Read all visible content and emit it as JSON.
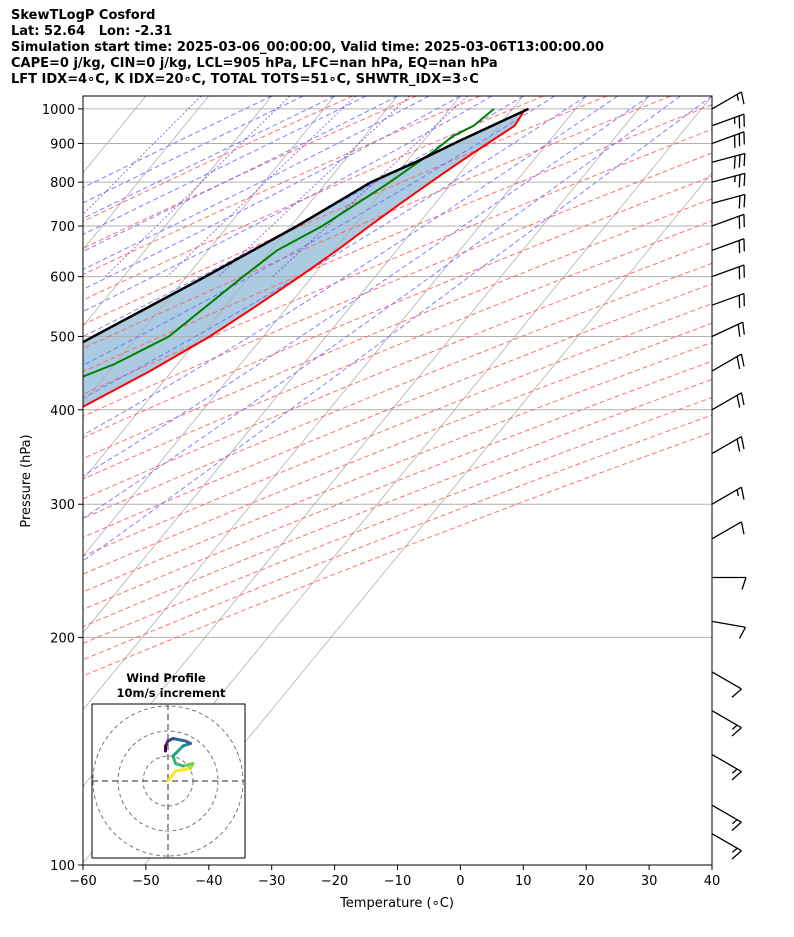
{
  "header": {
    "line1": "SkewTLogP Cosford",
    "line2": "Lat: 52.64   Lon: -2.31",
    "line3": "Simulation start time: 2025-03-06_00:00:00, Valid time: 2025-03-06T13:00:00.00",
    "line4": "CAPE=0 j/kg, CIN=0 j/kg, LCL=905 hPa, LFC=nan hPa, EQ=nan hPa",
    "line5": "LFT IDX=4∘C, K IDX=20∘C, TOTAL TOTS=51∘C, SHWTR_IDX=3∘C"
  },
  "colors": {
    "temperature": "#ff0000",
    "dewpoint": "#008000",
    "parcel": "#000000",
    "cape_fill": "#a6c8e0",
    "dry_adiabat": "#ff6060",
    "moist_adiabat": "#6a6aff",
    "mixing_ratio": "#7a00c8",
    "isotherm": "#b0b0b0",
    "isobar": "#b0b0b0"
  },
  "chart_data": {
    "type": "skewt",
    "xlabel": "Temperature (∘C)",
    "ylabel": "Pressure (hPa)",
    "xlim": [
      -60,
      40
    ],
    "ylim": [
      1040,
      100
    ],
    "y_scale": "log",
    "x_ticks": [
      -60,
      -50,
      -40,
      -30,
      -20,
      -10,
      0,
      10,
      20,
      30,
      40
    ],
    "x_tick_labels": [
      "−60",
      "−50",
      "−40",
      "−30",
      "−20",
      "−10",
      "0",
      "10",
      "20",
      "30",
      "40"
    ],
    "y_ticks": [
      1000,
      900,
      800,
      700,
      600,
      500,
      400,
      300,
      200,
      100
    ],
    "y_tick_labels": [
      "1000",
      "900",
      "800",
      "700",
      "600",
      "500",
      "400",
      "300",
      "200",
      "100"
    ],
    "grid": true,
    "temperature_profile": [
      {
        "p": 1000,
        "t": 12
      },
      {
        "p": 950,
        "t": 12.5
      },
      {
        "p": 900,
        "t": 10.5
      },
      {
        "p": 850,
        "t": 8.5
      },
      {
        "p": 800,
        "t": 6.5
      },
      {
        "p": 750,
        "t": 4.5
      },
      {
        "p": 700,
        "t": 2.5
      },
      {
        "p": 650,
        "t": 0.5
      },
      {
        "p": 600,
        "t": -2
      },
      {
        "p": 550,
        "t": -5
      },
      {
        "p": 500,
        "t": -8.5
      },
      {
        "p": 450,
        "t": -13.5
      },
      {
        "p": 400,
        "t": -20
      },
      {
        "p": 370,
        "t": -26
      },
      {
        "p": 340,
        "t": -30
      },
      {
        "p": 300,
        "t": -34
      },
      {
        "p": 270,
        "t": -40
      },
      {
        "p": 240,
        "t": -43
      },
      {
        "p": 200,
        "t": -50
      },
      {
        "p": 170,
        "t": -52
      },
      {
        "p": 150,
        "t": -55
      },
      {
        "p": 120,
        "t": -62
      },
      {
        "p": 100,
        "t": -68
      }
    ],
    "dewpoint_profile": [
      {
        "p": 1000,
        "t": 7
      },
      {
        "p": 950,
        "t": 6
      },
      {
        "p": 920,
        "t": 4
      },
      {
        "p": 880,
        "t": 3
      },
      {
        "p": 800,
        "t": 0
      },
      {
        "p": 700,
        "t": -5
      },
      {
        "p": 650,
        "t": -9
      },
      {
        "p": 600,
        "t": -11
      },
      {
        "p": 500,
        "t": -15
      },
      {
        "p": 460,
        "t": -20
      },
      {
        "p": 420,
        "t": -28
      },
      {
        "p": 390,
        "t": -33
      },
      {
        "p": 360,
        "t": -35
      },
      {
        "p": 320,
        "t": -45
      },
      {
        "p": 280,
        "t": -47
      },
      {
        "p": 250,
        "t": -56
      },
      {
        "p": 220,
        "t": -63
      },
      {
        "p": 200,
        "t": -61
      },
      {
        "p": 180,
        "t": -62
      },
      {
        "p": 160,
        "t": -69
      },
      {
        "p": 140,
        "t": -74
      },
      {
        "p": 120,
        "t": -75
      },
      {
        "p": 100,
        "t": -77
      }
    ],
    "parcel_profile": [
      {
        "p": 1000,
        "t": 12.5
      },
      {
        "p": 905,
        "t": 5.5
      },
      {
        "p": 850,
        "t": 1.5
      },
      {
        "p": 800,
        "t": -3
      },
      {
        "p": 700,
        "t": -9
      },
      {
        "p": 600,
        "t": -17
      },
      {
        "p": 500,
        "t": -27
      },
      {
        "p": 400,
        "t": -39
      },
      {
        "p": 300,
        "t": -53
      },
      {
        "p": 250,
        "t": -61
      },
      {
        "p": 200,
        "t": -71
      },
      {
        "p": 150,
        "t": -85
      },
      {
        "p": 100,
        "t": -104
      }
    ],
    "wind_barbs": [
      {
        "p": 1000,
        "dir": 240,
        "kt": 15
      },
      {
        "p": 950,
        "dir": 250,
        "kt": 25
      },
      {
        "p": 900,
        "dir": 250,
        "kt": 30
      },
      {
        "p": 850,
        "dir": 255,
        "kt": 30
      },
      {
        "p": 800,
        "dir": 255,
        "kt": 25
      },
      {
        "p": 750,
        "dir": 255,
        "kt": 20
      },
      {
        "p": 700,
        "dir": 250,
        "kt": 20
      },
      {
        "p": 650,
        "dir": 250,
        "kt": 20
      },
      {
        "p": 600,
        "dir": 250,
        "kt": 20
      },
      {
        "p": 550,
        "dir": 250,
        "kt": 20
      },
      {
        "p": 500,
        "dir": 245,
        "kt": 20
      },
      {
        "p": 450,
        "dir": 240,
        "kt": 20
      },
      {
        "p": 400,
        "dir": 240,
        "kt": 20
      },
      {
        "p": 350,
        "dir": 240,
        "kt": 20
      },
      {
        "p": 300,
        "dir": 240,
        "kt": 15
      },
      {
        "p": 270,
        "dir": 240,
        "kt": 10
      },
      {
        "p": 240,
        "dir": 270,
        "kt": 10
      },
      {
        "p": 210,
        "dir": 280,
        "kt": 10
      },
      {
        "p": 180,
        "dir": 300,
        "kt": 10
      },
      {
        "p": 160,
        "dir": 300,
        "kt": 15
      },
      {
        "p": 140,
        "dir": 300,
        "kt": 15
      },
      {
        "p": 120,
        "dir": 300,
        "kt": 15
      },
      {
        "p": 110,
        "dir": 300,
        "kt": 15
      }
    ],
    "hodograph": {
      "title": "Wind Profile",
      "subtitle": "10m/s increment",
      "points": [
        {
          "u": 0,
          "v": 0
        },
        {
          "u": 3,
          "v": 4
        },
        {
          "u": 9,
          "v": 5
        },
        {
          "u": 10,
          "v": 7
        },
        {
          "u": 6,
          "v": 6
        },
        {
          "u": 3,
          "v": 7
        },
        {
          "u": 2,
          "v": 10
        },
        {
          "u": 6,
          "v": 14
        },
        {
          "u": 9,
          "v": 15
        },
        {
          "u": 7,
          "v": 16
        },
        {
          "u": 2,
          "v": 17
        },
        {
          "u": 0,
          "v": 16
        },
        {
          "u": -1,
          "v": 14
        },
        {
          "u": -1,
          "v": 12
        }
      ]
    }
  }
}
